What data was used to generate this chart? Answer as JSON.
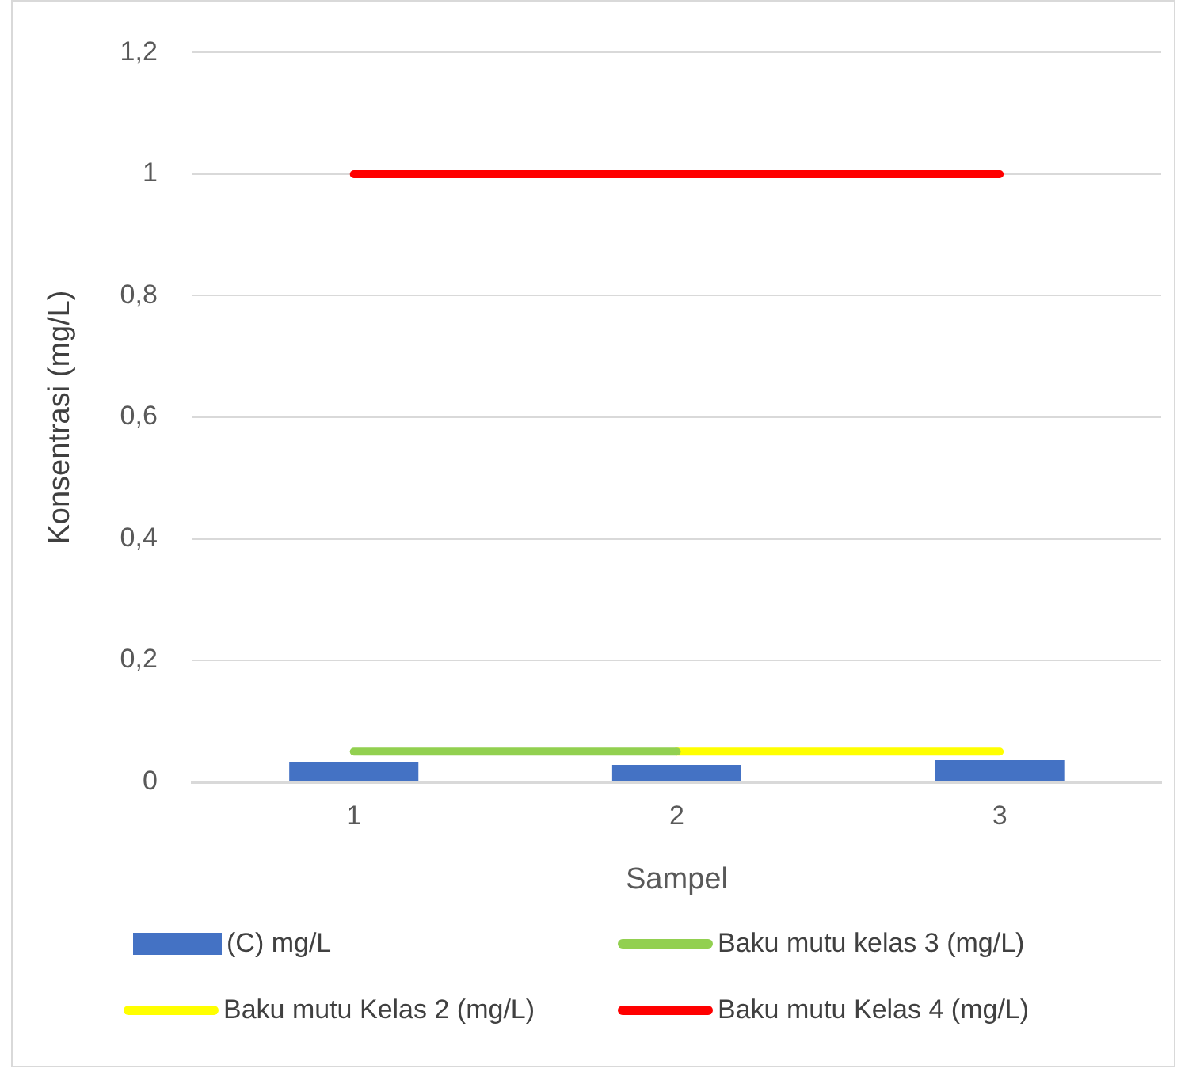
{
  "chart_data": {
    "type": "bar",
    "xlabel": "Sampel",
    "ylabel": "Konsentrasi (mg/L)",
    "categories": [
      "1",
      "2",
      "3"
    ],
    "series": [
      {
        "name": "(C) mg/L",
        "color": "#4472c4",
        "values": [
          0.032,
          0.028,
          0.036
        ]
      },
      {
        "name": "Baku mutu kelas 3 (mg/L)",
        "type": "line",
        "color": "#92d050",
        "values": [
          0.05,
          0.05,
          null
        ]
      },
      {
        "name": "Baku mutu Kelas 2 (mg/L)",
        "type": "line",
        "color": "#ffff00",
        "values": [
          null,
          0.05,
          0.05
        ]
      },
      {
        "name": "Baku mutu Kelas 4 (mg/L)",
        "type": "line",
        "color": "#ff0000",
        "values": [
          1,
          1,
          1
        ]
      }
    ],
    "ylim": [
      0,
      1.2
    ],
    "yticks": [
      0,
      {
        "value": 0.2,
        "label": "0,2"
      },
      {
        "value": 0.4,
        "label": "0,4"
      },
      {
        "value": 0.6,
        "label": "0,6"
      },
      {
        "value": 0.8,
        "label": "0,8"
      },
      1,
      {
        "value": 1.2,
        "label": "1,2"
      }
    ],
    "grid": "y",
    "legend": "bottom",
    "marker": "none"
  }
}
